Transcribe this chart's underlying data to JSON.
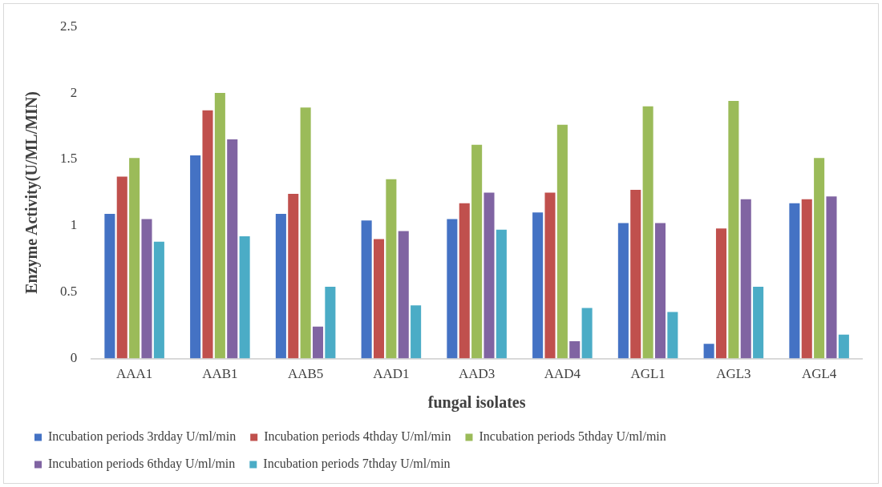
{
  "chart_data": {
    "type": "bar",
    "xlabel": "fungal isolates",
    "ylabel": "Enzyme Activity(U/ML/MIN)",
    "categories": [
      "AAA1",
      "AAB1",
      "AAB5",
      "AAD1",
      "AAD3",
      "AAD4",
      "AGL1",
      "AGL3",
      "AGL4"
    ],
    "series": [
      {
        "name": "Incubation periods 3rdday U/ml/min",
        "color": "#4472c4",
        "values": [
          1.09,
          1.53,
          1.09,
          1.04,
          1.05,
          1.1,
          1.02,
          0.11,
          1.17
        ]
      },
      {
        "name": "Incubation periods 4thday U/ml/min",
        "color": "#c0504d",
        "values": [
          1.37,
          1.87,
          1.24,
          0.9,
          1.17,
          1.25,
          1.27,
          0.98,
          1.2
        ]
      },
      {
        "name": "Incubation periods 5thday U/ml/min",
        "color": "#9bbb59",
        "values": [
          1.51,
          2.0,
          1.89,
          1.35,
          1.61,
          1.76,
          1.9,
          1.94,
          1.51
        ]
      },
      {
        "name": "Incubation periods 6thday U/ml/min",
        "color": "#8064a2",
        "values": [
          1.05,
          1.65,
          0.24,
          0.96,
          1.25,
          0.13,
          1.02,
          1.2,
          1.22
        ]
      },
      {
        "name": "Incubation periods 7thday U/ml/min",
        "color": "#4bacc6",
        "values": [
          0.88,
          0.92,
          0.54,
          0.4,
          0.97,
          0.38,
          0.35,
          0.54,
          0.18
        ]
      }
    ],
    "ylim": [
      0,
      2.5
    ],
    "yticks": [
      0,
      0.5,
      1,
      1.5,
      2,
      2.5
    ],
    "grid": false,
    "legend": "bottom"
  }
}
